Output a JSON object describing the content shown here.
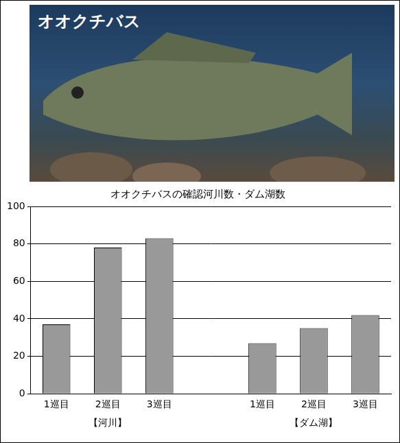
{
  "photo_label": "オオクチバス",
  "chart_data": {
    "type": "bar",
    "title": "オオクチバスの確認河川数・ダム湖数",
    "categories": [
      "1巡目",
      "2巡目",
      "3巡目",
      null,
      "1巡目",
      "2巡目",
      "3巡目"
    ],
    "values": [
      37,
      78,
      83,
      null,
      27,
      35,
      42
    ],
    "group_labels": [
      "【河川】",
      "【ダム湖】"
    ],
    "color": "#999999",
    "ylim": [
      0,
      100
    ],
    "yticks": [
      0,
      20,
      40,
      60,
      80,
      100
    ],
    "grid": true
  }
}
